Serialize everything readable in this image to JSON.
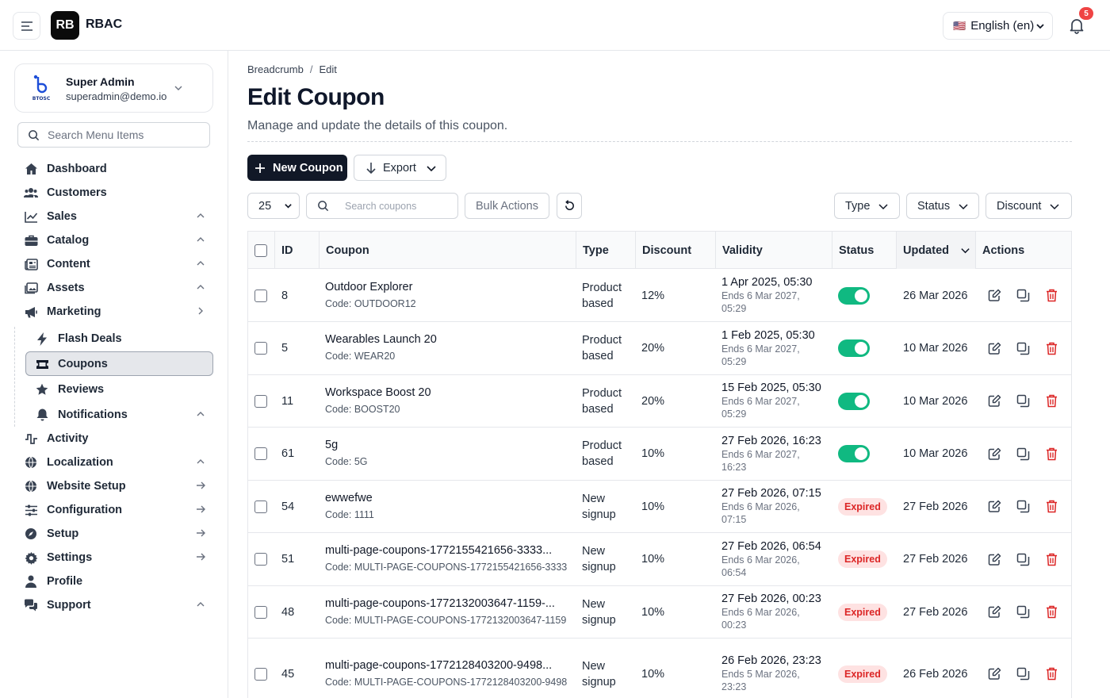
{
  "app": {
    "logo": "RB",
    "name": "RBAC"
  },
  "header": {
    "language": "English (en)",
    "flag": "🇺🇸",
    "notifications_count": "5"
  },
  "user": {
    "name": "Super Admin",
    "email": "superadmin@demo.io",
    "logo_text": "BTOSC"
  },
  "sidebar": {
    "search_placeholder": "Search Menu Items",
    "items": [
      {
        "label": "Dashboard",
        "icon": "home-icon",
        "trail": ""
      },
      {
        "label": "Customers",
        "icon": "users-icon",
        "trail": "chevron-up"
      },
      {
        "label": "Sales",
        "icon": "chart-icon",
        "trail": "chevron-up"
      },
      {
        "label": "Catalog",
        "icon": "briefcase-icon",
        "trail": "chevron-up"
      },
      {
        "label": "Content",
        "icon": "newspaper-icon",
        "trail": "chevron-up"
      },
      {
        "label": "Assets",
        "icon": "images-icon",
        "trail": "chevron-up"
      },
      {
        "label": "Marketing",
        "icon": "megaphone-icon",
        "trail": "chevron-right"
      }
    ],
    "sub_items": [
      {
        "label": "Flash Deals",
        "icon": "bolt-icon"
      },
      {
        "label": "Coupons",
        "icon": "ticket-icon"
      },
      {
        "label": "Reviews",
        "icon": "star-icon"
      },
      {
        "label": "Notifications",
        "icon": "bell-icon"
      }
    ],
    "items_after": [
      {
        "label": "Activity",
        "icon": "activity-icon",
        "trail": ""
      },
      {
        "label": "Localization",
        "icon": "globe-icon",
        "trail": "chevron-up"
      },
      {
        "label": "Website Setup",
        "icon": "globe-icon",
        "trail": "arrow-right"
      },
      {
        "label": "Configuration",
        "icon": "sliders-icon",
        "trail": "arrow-right"
      },
      {
        "label": "Setup",
        "icon": "compass-icon",
        "trail": "arrow-right"
      },
      {
        "label": "Settings",
        "icon": "gear-icon",
        "trail": "arrow-right"
      },
      {
        "label": "Profile",
        "icon": "user-icon",
        "trail": ""
      },
      {
        "label": "Support",
        "icon": "chat-icon",
        "trail": "chevron-up"
      }
    ]
  },
  "page": {
    "breadcrumb": [
      "Breadcrumb",
      "Edit"
    ],
    "breadcrumb_sep": "/",
    "title": "Edit Coupon",
    "subtitle": "Manage and update the details of this coupon."
  },
  "toolbar": {
    "new_label": "New Coupon",
    "export_label": "Export",
    "per_page": "25",
    "search_placeholder": "Search coupons",
    "bulk_label": "Bulk Actions",
    "filter_type": "Type",
    "filter_status": "Status",
    "filter_discount": "Discount"
  },
  "table": {
    "columns": {
      "id": "ID",
      "coupon": "Coupon",
      "type": "Type",
      "discount": "Discount",
      "validity": "Validity",
      "status": "Status",
      "updated": "Updated",
      "actions": "Actions"
    },
    "rows": [
      {
        "id": "8",
        "name": "Outdoor Explorer",
        "code": "Code: OUTDOOR12",
        "type": [
          "Product",
          "based"
        ],
        "discount": "12%",
        "start": "1 Apr 2025, 05:30",
        "end": [
          "Ends 6 Mar 2027,",
          "05:29"
        ],
        "status": "active",
        "updated": "26 Mar 2026"
      },
      {
        "id": "5",
        "name": "Wearables Launch 20",
        "code": "Code: WEAR20",
        "type": [
          "Product",
          "based"
        ],
        "discount": "20%",
        "start": "1 Feb 2025, 05:30",
        "end": [
          "Ends 6 Mar 2027,",
          "05:29"
        ],
        "status": "active",
        "updated": "10 Mar 2026"
      },
      {
        "id": "11",
        "name": "Workspace Boost 20",
        "code": "Code: BOOST20",
        "type": [
          "Product",
          "based"
        ],
        "discount": "20%",
        "start": "15 Feb 2025, 05:30",
        "end": [
          "Ends 6 Mar 2027,",
          "05:29"
        ],
        "status": "active",
        "updated": "10 Mar 2026"
      },
      {
        "id": "61",
        "name": "5g",
        "code": "Code: 5G",
        "type": [
          "Product",
          "based"
        ],
        "discount": "10%",
        "start": "27 Feb 2026, 16:23",
        "end": [
          "Ends 6 Mar 2027,",
          "16:23"
        ],
        "status": "active",
        "updated": "10 Mar 2026"
      },
      {
        "id": "54",
        "name": "ewwefwe",
        "code": "Code: 1111",
        "type": [
          "New",
          "signup"
        ],
        "discount": "10%",
        "start": "27 Feb 2026, 07:15",
        "end": [
          "Ends 6 Mar 2026,",
          "07:15"
        ],
        "status": "Expired",
        "updated": "27 Feb 2026"
      },
      {
        "id": "51",
        "name": "multi-page-coupons-1772155421656-3333...",
        "code": "Code: MULTI-PAGE-COUPONS-1772155421656-3333",
        "type": [
          "New",
          "signup"
        ],
        "discount": "10%",
        "start": "27 Feb 2026, 06:54",
        "end": [
          "Ends 6 Mar 2026,",
          "06:54"
        ],
        "status": "Expired",
        "updated": "27 Feb 2026"
      },
      {
        "id": "48",
        "name": "multi-page-coupons-1772132003647-1159-...",
        "code": "Code: MULTI-PAGE-COUPONS-1772132003647-1159",
        "type": [
          "New",
          "signup"
        ],
        "discount": "10%",
        "start": "27 Feb 2026, 00:23",
        "end": [
          "Ends 6 Mar 2026,",
          "00:23"
        ],
        "status": "Expired",
        "updated": "27 Feb 2026"
      },
      {
        "id": "45",
        "name": "multi-page-coupons-1772128403200-9498...",
        "code": "Code: MULTI-PAGE-COUPONS-1772128403200-9498",
        "type": [
          "New",
          "signup"
        ],
        "discount": "10%",
        "start": "26 Feb 2026, 23:23",
        "end": [
          "Ends 5 Mar 2026,",
          "23:23"
        ],
        "status": "Expired",
        "updated": "26 Feb 2026"
      }
    ]
  },
  "colors": {
    "primary": "#111827",
    "toggle_on": "#10b981",
    "danger": "#dc2626",
    "badge_bg": "#fee2e2"
  }
}
